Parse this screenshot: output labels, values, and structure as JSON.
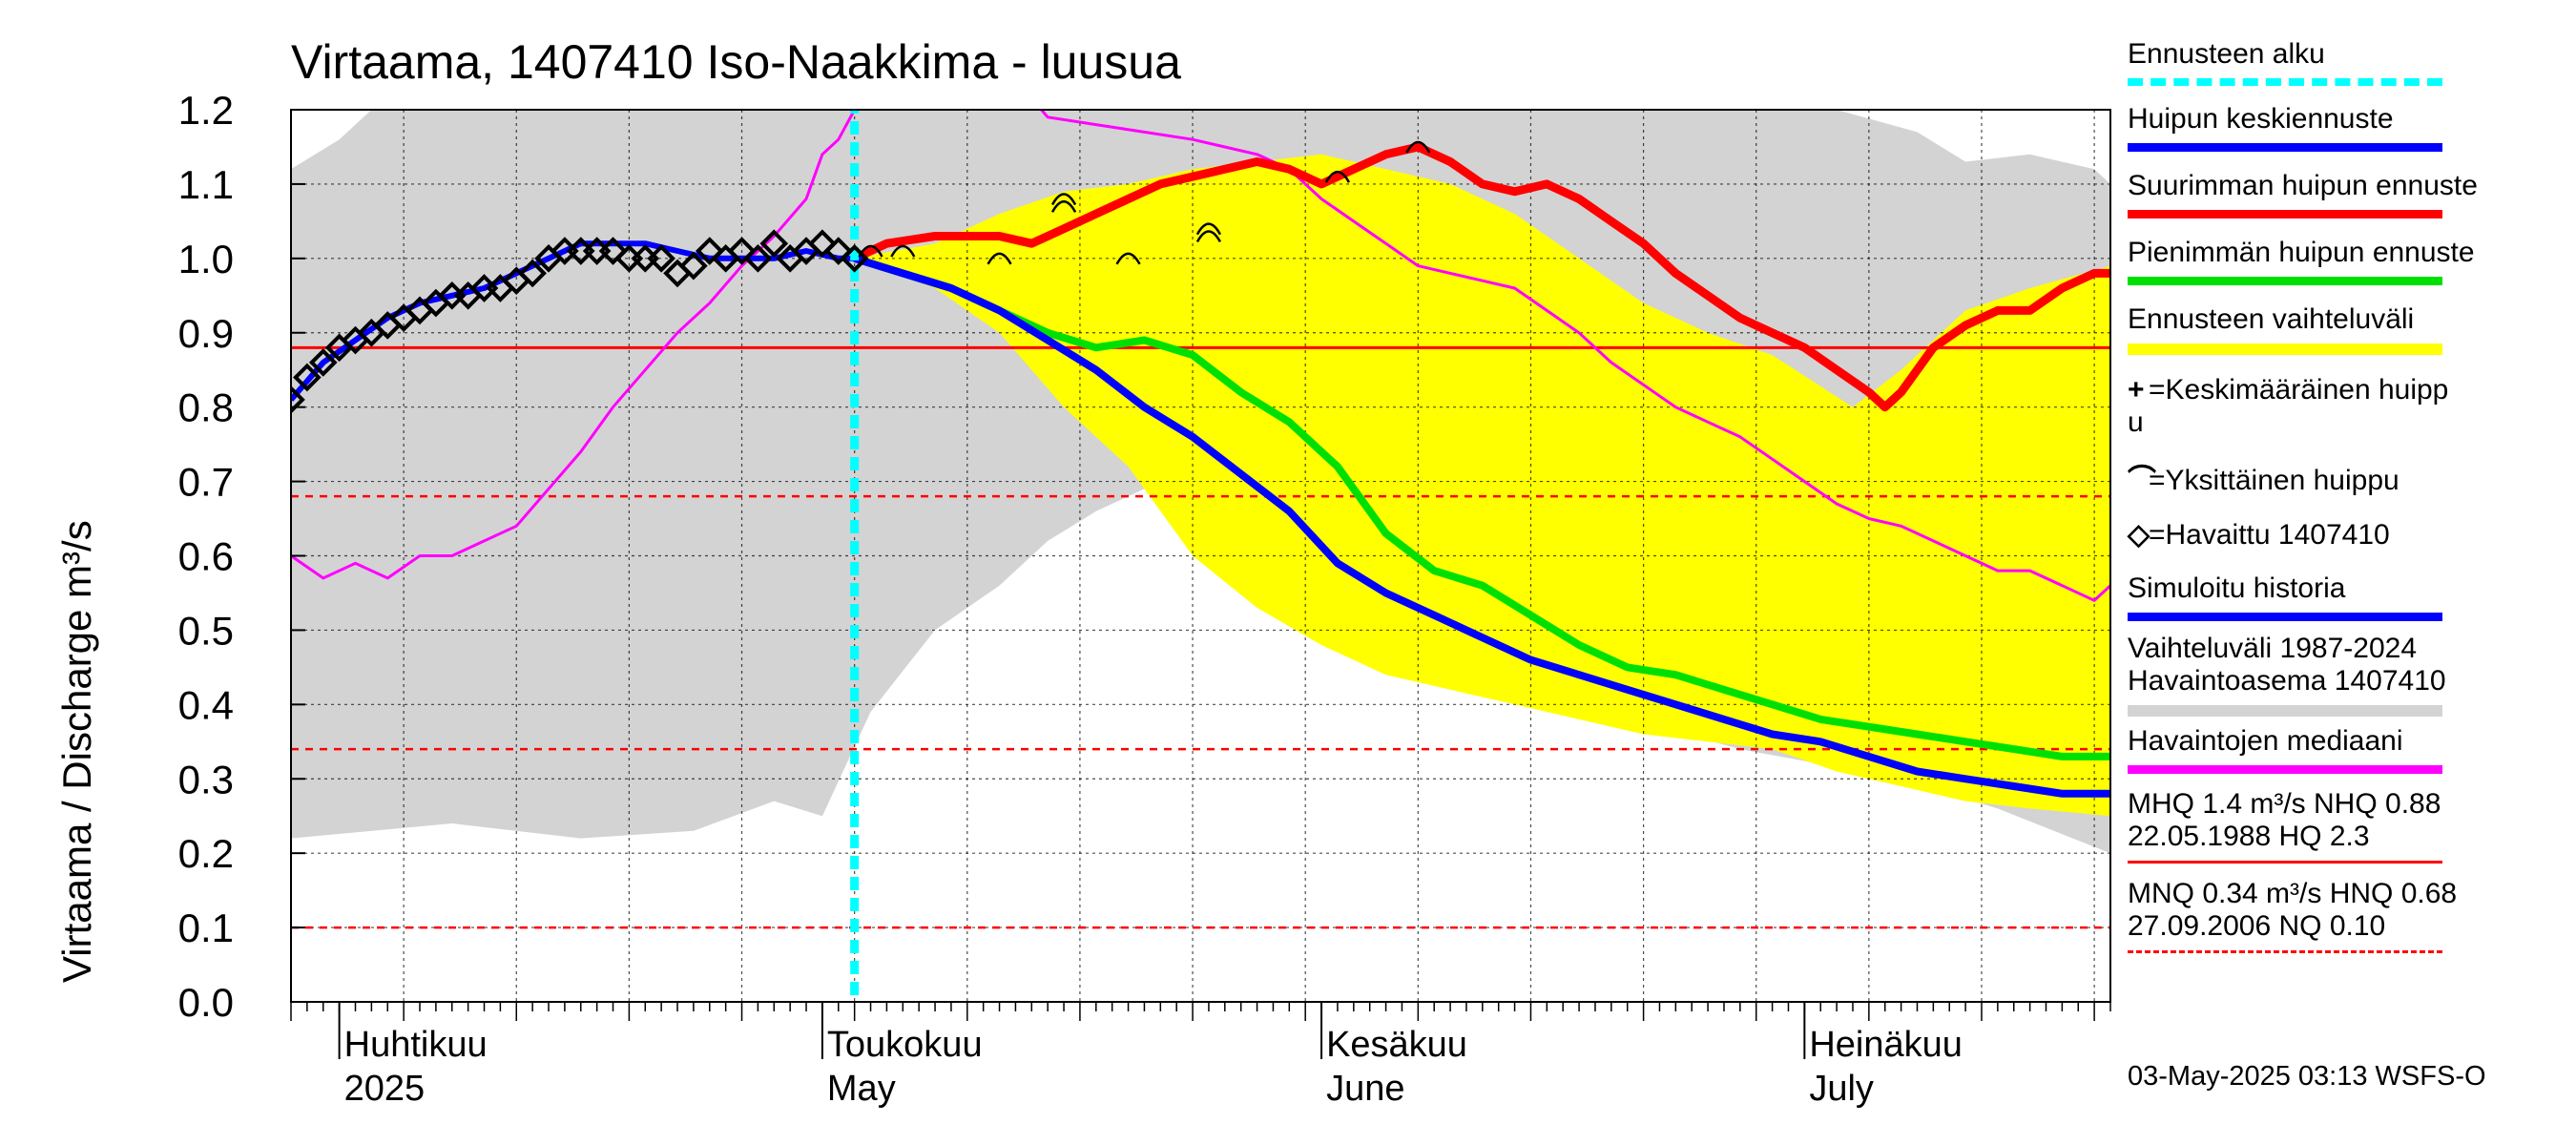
{
  "chart_data": {
    "type": "line",
    "title": "Virtaama, 1407410 Iso-Naakkima - luusua",
    "ylabel": "Virtaama / Discharge   m³/s",
    "ylim": [
      0.0,
      1.2
    ],
    "yticks": [
      "0.0",
      "0.1",
      "0.2",
      "0.3",
      "0.4",
      "0.5",
      "0.6",
      "0.7",
      "0.8",
      "0.9",
      "1.0",
      "1.1",
      "1.2"
    ],
    "x_start": "2025-03-29",
    "x_end": "2025-08-07",
    "forecast_start": "2025-05-03",
    "month_labels": [
      {
        "fi": "Huhtikuu",
        "en": "2025",
        "date": "2025-04-01"
      },
      {
        "fi": "Toukokuu",
        "en": "May",
        "date": "2025-05-01"
      },
      {
        "fi": "Kesäkuu",
        "en": "June",
        "date": "2025-06-01"
      },
      {
        "fi": "Heinäkuu",
        "en": "July",
        "date": "2025-07-01"
      }
    ],
    "reference_lines": [
      {
        "value": 0.88,
        "style": "solid",
        "color": "#ff0000"
      },
      {
        "value": 0.68,
        "style": "dashed",
        "color": "#ff0000"
      },
      {
        "value": 0.34,
        "style": "dashed",
        "color": "#ff0000"
      },
      {
        "value": 0.1,
        "style": "dashed",
        "color": "#ff0000"
      }
    ],
    "series": [
      {
        "name": "Vaihteluväli 1987-2024 Havaintoasema 1407410",
        "type": "band",
        "color": "#d3d3d3",
        "upper": [
          [
            0,
            1.12
          ],
          [
            3,
            1.16
          ],
          [
            5,
            1.2
          ],
          [
            60,
            1.2
          ],
          [
            96,
            1.2
          ],
          [
            101,
            1.17
          ],
          [
            104,
            1.13
          ],
          [
            108,
            1.14
          ],
          [
            112,
            1.12
          ],
          [
            113,
            1.1
          ]
        ],
        "lower": [
          [
            0,
            0.22
          ],
          [
            10,
            0.24
          ],
          [
            18,
            0.22
          ],
          [
            25,
            0.23
          ],
          [
            30,
            0.27
          ],
          [
            33,
            0.25
          ],
          [
            36,
            0.39
          ],
          [
            40,
            0.5
          ],
          [
            44,
            0.56
          ],
          [
            47,
            0.62
          ],
          [
            50,
            0.66
          ],
          [
            54,
            0.7
          ],
          [
            57,
            0.68
          ],
          [
            60,
            0.6
          ],
          [
            70,
            0.48
          ],
          [
            80,
            0.4
          ],
          [
            90,
            0.34
          ],
          [
            100,
            0.3
          ],
          [
            106,
            0.26
          ],
          [
            113,
            0.2
          ]
        ]
      },
      {
        "name": "Ennusteen vaihteluväli",
        "type": "band",
        "color": "#ffff00",
        "upper": [
          [
            35,
            1.0
          ],
          [
            40,
            1.02
          ],
          [
            44,
            1.06
          ],
          [
            48,
            1.09
          ],
          [
            52,
            1.1
          ],
          [
            56,
            1.12
          ],
          [
            60,
            1.13
          ],
          [
            64,
            1.14
          ],
          [
            68,
            1.12
          ],
          [
            72,
            1.1
          ],
          [
            76,
            1.06
          ],
          [
            80,
            1.0
          ],
          [
            84,
            0.94
          ],
          [
            88,
            0.9
          ],
          [
            92,
            0.87
          ],
          [
            97,
            0.8
          ],
          [
            100,
            0.85
          ],
          [
            104,
            0.93
          ],
          [
            108,
            0.96
          ],
          [
            113,
            0.99
          ]
        ],
        "lower": [
          [
            35,
            1.0
          ],
          [
            40,
            0.96
          ],
          [
            44,
            0.9
          ],
          [
            48,
            0.8
          ],
          [
            52,
            0.72
          ],
          [
            56,
            0.6
          ],
          [
            60,
            0.53
          ],
          [
            64,
            0.48
          ],
          [
            68,
            0.44
          ],
          [
            72,
            0.42
          ],
          [
            76,
            0.4
          ],
          [
            80,
            0.38
          ],
          [
            84,
            0.36
          ],
          [
            88,
            0.35
          ],
          [
            92,
            0.34
          ],
          [
            96,
            0.31
          ],
          [
            100,
            0.29
          ],
          [
            104,
            0.27
          ],
          [
            108,
            0.26
          ],
          [
            113,
            0.25
          ]
        ]
      },
      {
        "name": "Havaintojen mediaani",
        "type": "line",
        "color": "#ff00ff",
        "points": [
          [
            0,
            0.6
          ],
          [
            2,
            0.57
          ],
          [
            4,
            0.59
          ],
          [
            6,
            0.57
          ],
          [
            8,
            0.6
          ],
          [
            10,
            0.6
          ],
          [
            12,
            0.62
          ],
          [
            14,
            0.64
          ],
          [
            16,
            0.69
          ],
          [
            18,
            0.74
          ],
          [
            20,
            0.8
          ],
          [
            22,
            0.85
          ],
          [
            24,
            0.9
          ],
          [
            26,
            0.94
          ],
          [
            28,
            0.99
          ],
          [
            30,
            1.03
          ],
          [
            32,
            1.08
          ],
          [
            33,
            1.14
          ],
          [
            34,
            1.16
          ],
          [
            35,
            1.2
          ],
          [
            37,
            1.22
          ],
          [
            40,
            1.23
          ],
          [
            45,
            1.24
          ],
          [
            47,
            1.19
          ],
          [
            50,
            1.18
          ],
          [
            53,
            1.17
          ],
          [
            56,
            1.16
          ],
          [
            58,
            1.15
          ],
          [
            60,
            1.14
          ],
          [
            62,
            1.12
          ],
          [
            64,
            1.08
          ],
          [
            66,
            1.05
          ],
          [
            68,
            1.02
          ],
          [
            70,
            0.99
          ],
          [
            72,
            0.98
          ],
          [
            74,
            0.97
          ],
          [
            76,
            0.96
          ],
          [
            78,
            0.93
          ],
          [
            80,
            0.9
          ],
          [
            82,
            0.86
          ],
          [
            84,
            0.83
          ],
          [
            86,
            0.8
          ],
          [
            88,
            0.78
          ],
          [
            90,
            0.76
          ],
          [
            92,
            0.73
          ],
          [
            94,
            0.7
          ],
          [
            96,
            0.67
          ],
          [
            98,
            0.65
          ],
          [
            100,
            0.64
          ],
          [
            102,
            0.62
          ],
          [
            104,
            0.6
          ],
          [
            106,
            0.58
          ],
          [
            108,
            0.58
          ],
          [
            110,
            0.56
          ],
          [
            112,
            0.54
          ],
          [
            113,
            0.56
          ]
        ]
      },
      {
        "name": "Suurimman huipun ennuste",
        "type": "line",
        "color": "#ff0000",
        "points": [
          [
            35,
            1.0
          ],
          [
            37,
            1.02
          ],
          [
            40,
            1.03
          ],
          [
            44,
            1.03
          ],
          [
            46,
            1.02
          ],
          [
            48,
            1.04
          ],
          [
            50,
            1.06
          ],
          [
            52,
            1.08
          ],
          [
            54,
            1.1
          ],
          [
            56,
            1.11
          ],
          [
            58,
            1.12
          ],
          [
            60,
            1.13
          ],
          [
            62,
            1.12
          ],
          [
            64,
            1.1
          ],
          [
            66,
            1.12
          ],
          [
            68,
            1.14
          ],
          [
            70,
            1.15
          ],
          [
            72,
            1.13
          ],
          [
            74,
            1.1
          ],
          [
            76,
            1.09
          ],
          [
            78,
            1.1
          ],
          [
            80,
            1.08
          ],
          [
            82,
            1.05
          ],
          [
            84,
            1.02
          ],
          [
            86,
            0.98
          ],
          [
            88,
            0.95
          ],
          [
            90,
            0.92
          ],
          [
            92,
            0.9
          ],
          [
            94,
            0.88
          ],
          [
            96,
            0.85
          ],
          [
            98,
            0.82
          ],
          [
            99,
            0.8
          ],
          [
            100,
            0.82
          ],
          [
            102,
            0.88
          ],
          [
            104,
            0.91
          ],
          [
            106,
            0.93
          ],
          [
            108,
            0.93
          ],
          [
            110,
            0.96
          ],
          [
            112,
            0.98
          ],
          [
            113,
            0.98
          ]
        ]
      },
      {
        "name": "Pienimmän huipun ennuste",
        "type": "line",
        "color": "#00e000",
        "points": [
          [
            35,
            1.0
          ],
          [
            38,
            0.98
          ],
          [
            41,
            0.96
          ],
          [
            44,
            0.93
          ],
          [
            47,
            0.9
          ],
          [
            50,
            0.88
          ],
          [
            53,
            0.89
          ],
          [
            56,
            0.87
          ],
          [
            59,
            0.82
          ],
          [
            62,
            0.78
          ],
          [
            65,
            0.72
          ],
          [
            68,
            0.63
          ],
          [
            71,
            0.58
          ],
          [
            74,
            0.56
          ],
          [
            77,
            0.52
          ],
          [
            80,
            0.48
          ],
          [
            83,
            0.45
          ],
          [
            86,
            0.44
          ],
          [
            89,
            0.42
          ],
          [
            92,
            0.4
          ],
          [
            95,
            0.38
          ],
          [
            98,
            0.37
          ],
          [
            101,
            0.36
          ],
          [
            104,
            0.35
          ],
          [
            107,
            0.34
          ],
          [
            110,
            0.33
          ],
          [
            113,
            0.33
          ]
        ]
      },
      {
        "name": "Huipun keskiennuste",
        "type": "line",
        "color": "#0000ff",
        "points": [
          [
            35,
            1.0
          ],
          [
            38,
            0.98
          ],
          [
            41,
            0.96
          ],
          [
            44,
            0.93
          ],
          [
            47,
            0.89
          ],
          [
            50,
            0.85
          ],
          [
            53,
            0.8
          ],
          [
            56,
            0.76
          ],
          [
            59,
            0.71
          ],
          [
            62,
            0.66
          ],
          [
            65,
            0.59
          ],
          [
            68,
            0.55
          ],
          [
            71,
            0.52
          ],
          [
            74,
            0.49
          ],
          [
            77,
            0.46
          ],
          [
            80,
            0.44
          ],
          [
            83,
            0.42
          ],
          [
            86,
            0.4
          ],
          [
            89,
            0.38
          ],
          [
            92,
            0.36
          ],
          [
            95,
            0.35
          ],
          [
            98,
            0.33
          ],
          [
            101,
            0.31
          ],
          [
            104,
            0.3
          ],
          [
            107,
            0.29
          ],
          [
            110,
            0.28
          ],
          [
            113,
            0.28
          ]
        ]
      },
      {
        "name": "Simuloitu historia",
        "type": "line",
        "color": "#0000ff",
        "points": [
          [
            0,
            0.81
          ],
          [
            2,
            0.86
          ],
          [
            4,
            0.89
          ],
          [
            6,
            0.92
          ],
          [
            8,
            0.94
          ],
          [
            10,
            0.95
          ],
          [
            12,
            0.96
          ],
          [
            14,
            0.98
          ],
          [
            16,
            1.0
          ],
          [
            18,
            1.02
          ],
          [
            20,
            1.02
          ],
          [
            22,
            1.02
          ],
          [
            24,
            1.01
          ],
          [
            26,
            1.0
          ],
          [
            28,
            1.0
          ],
          [
            30,
            1.0
          ],
          [
            32,
            1.01
          ],
          [
            34,
            1.0
          ],
          [
            35,
            1.0
          ]
        ]
      }
    ],
    "observed_points": [
      [
        0,
        0.81
      ],
      [
        1,
        0.84
      ],
      [
        2,
        0.86
      ],
      [
        3,
        0.88
      ],
      [
        4,
        0.89
      ],
      [
        5,
        0.9
      ],
      [
        6,
        0.91
      ],
      [
        7,
        0.92
      ],
      [
        8,
        0.93
      ],
      [
        9,
        0.94
      ],
      [
        10,
        0.95
      ],
      [
        11,
        0.95
      ],
      [
        12,
        0.96
      ],
      [
        13,
        0.96
      ],
      [
        14,
        0.97
      ],
      [
        15,
        0.98
      ],
      [
        16,
        1.0
      ],
      [
        17,
        1.01
      ],
      [
        18,
        1.01
      ],
      [
        19,
        1.01
      ],
      [
        20,
        1.01
      ],
      [
        21,
        1.0
      ],
      [
        22,
        1.0
      ],
      [
        23,
        1.0
      ],
      [
        24,
        0.98
      ],
      [
        25,
        0.99
      ],
      [
        26,
        1.01
      ],
      [
        27,
        1.0
      ],
      [
        28,
        1.01
      ],
      [
        29,
        1.0
      ],
      [
        30,
        1.02
      ],
      [
        31,
        1.0
      ],
      [
        32,
        1.01
      ],
      [
        33,
        1.02
      ],
      [
        34,
        1.01
      ],
      [
        35,
        1.0
      ]
    ],
    "single_peaks": [
      [
        36,
        1.01
      ],
      [
        38,
        1.01
      ],
      [
        44,
        1.0
      ],
      [
        48,
        1.07
      ],
      [
        48,
        1.08
      ],
      [
        52,
        1.0
      ],
      [
        57,
        1.03
      ],
      [
        57,
        1.04
      ],
      [
        65,
        1.11
      ],
      [
        70,
        1.15
      ]
    ],
    "x_domain_days": 113
  },
  "legend": [
    {
      "label": "Ennusteen alku",
      "color": "#00ffff",
      "style": "dotted"
    },
    {
      "label": "Huipun keskiennuste",
      "color": "#0000ff",
      "style": "solid"
    },
    {
      "label": "Suurimman huipun ennuste",
      "color": "#ff0000",
      "style": "solid"
    },
    {
      "label": "Pienimmän huipun ennuste",
      "color": "#00e000",
      "style": "solid"
    },
    {
      "label": "Ennusteen vaihteluväli",
      "color": "#ffff00",
      "style": "solid"
    },
    {
      "label": "=Keskimääräinen huipp",
      "label2": "u",
      "marker": "plus"
    },
    {
      "label": "=Yksittäinen huippu",
      "marker": "arc"
    },
    {
      "label": "=Havaittu 1407410",
      "marker": "diamond"
    },
    {
      "label": "Simuloitu historia",
      "color": "#0000ff",
      "style": "solid"
    },
    {
      "label": "Vaihteluväli 1987-2024",
      "label2": " Havaintoasema 1407410",
      "color": "#d3d3d3",
      "style": "solid"
    },
    {
      "label": "Havaintojen mediaani",
      "color": "#ff00ff",
      "style": "solid"
    },
    {
      "label": "MHQ  1.4 m³/s NHQ 0.88",
      "label2": "22.05.1988 HQ  2.3",
      "color": "#ff0000",
      "style": "solid"
    },
    {
      "label": "MNQ 0.34 m³/s HNQ 0.68",
      "label2": "27.09.2006 NQ 0.10",
      "color": "#ff0000",
      "style": "dashed"
    }
  ],
  "footer": "03-May-2025 03:13 WSFS-O"
}
